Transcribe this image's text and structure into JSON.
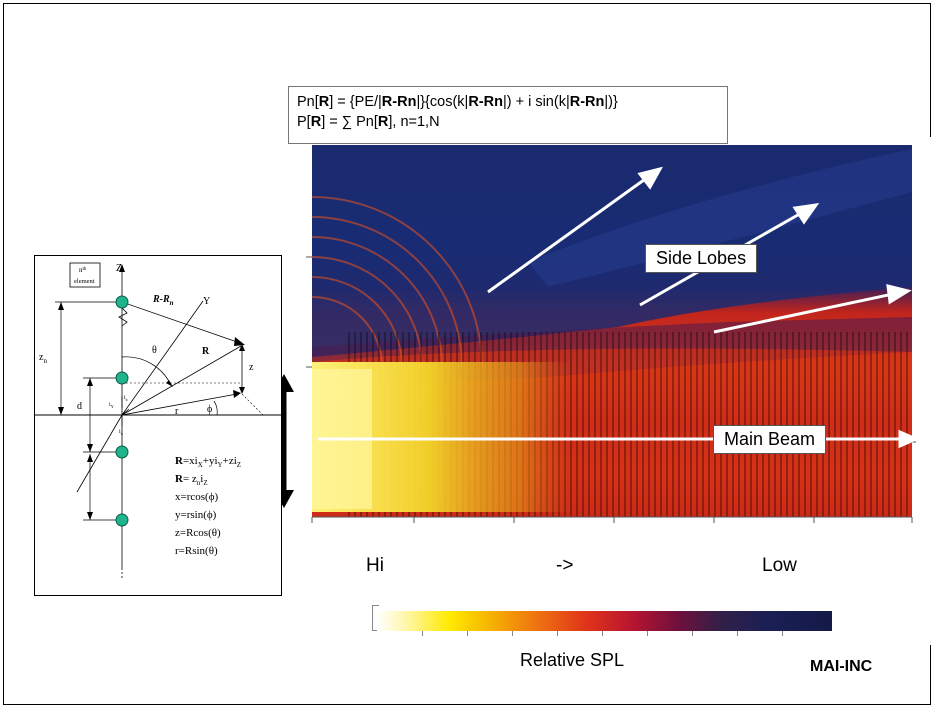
{
  "formula": {
    "line1": {
      "p1": "Pn[",
      "b1": "R",
      "p2": "] = {PE/|",
      "b2": "R-Rn",
      "p3": "|}{cos(k|",
      "b3": "R-Rn",
      "p4": "|) + i sin(k|",
      "b4": "R-Rn",
      "p5": "|)}"
    },
    "line2": {
      "p1": "P[",
      "b1": "R",
      "p2": "] = ∑ Pn[",
      "b2": "R",
      "p3": "], n=1,N"
    }
  },
  "labels": {
    "side_lobes": "Side Lobes",
    "main_beam": "Main Beam"
  },
  "scale": {
    "hi": "Hi",
    "arrow": "->",
    "low": "Low",
    "caption": "Relative SPL"
  },
  "footer": {
    "brand": "MAI-INC"
  },
  "colors": {
    "deep_blue": "#1b2a7a",
    "red": "#d82a18",
    "yellow": "#ffe400",
    "white_arrow": "#ffffff"
  },
  "diagram": {
    "nth": "n",
    "th": "th",
    "element": "element",
    "z_axis": "Z",
    "y_axis": "Y",
    "r_minus_rn": "R-R",
    "r_minus_rn_sub": "n",
    "theta": "θ",
    "R": "R",
    "z": "z",
    "r": "r",
    "phi": "ϕ",
    "zn": "z",
    "zn_sub": "n",
    "d": "d",
    "ix": "i",
    "ix_sub": "x",
    "iy": "i",
    "iy_sub": "Y",
    "iz": "i",
    "iz_sub": "z",
    "eq1": {
      "R": "R",
      "a": "=xi",
      "s1": "X",
      "b": "+yi",
      "s2": "Y",
      "c": "+zi",
      "s3": "Z"
    },
    "eq2": {
      "R": "R",
      "a": "= z",
      "s1": "n",
      "b": "i",
      "s2": "Z"
    },
    "eq3": "x=rcos(ϕ)",
    "eq4": "y=rsin(ϕ)",
    "eq5": "z=Rcos(θ)",
    "eq6": "r=Rsin(θ)"
  }
}
